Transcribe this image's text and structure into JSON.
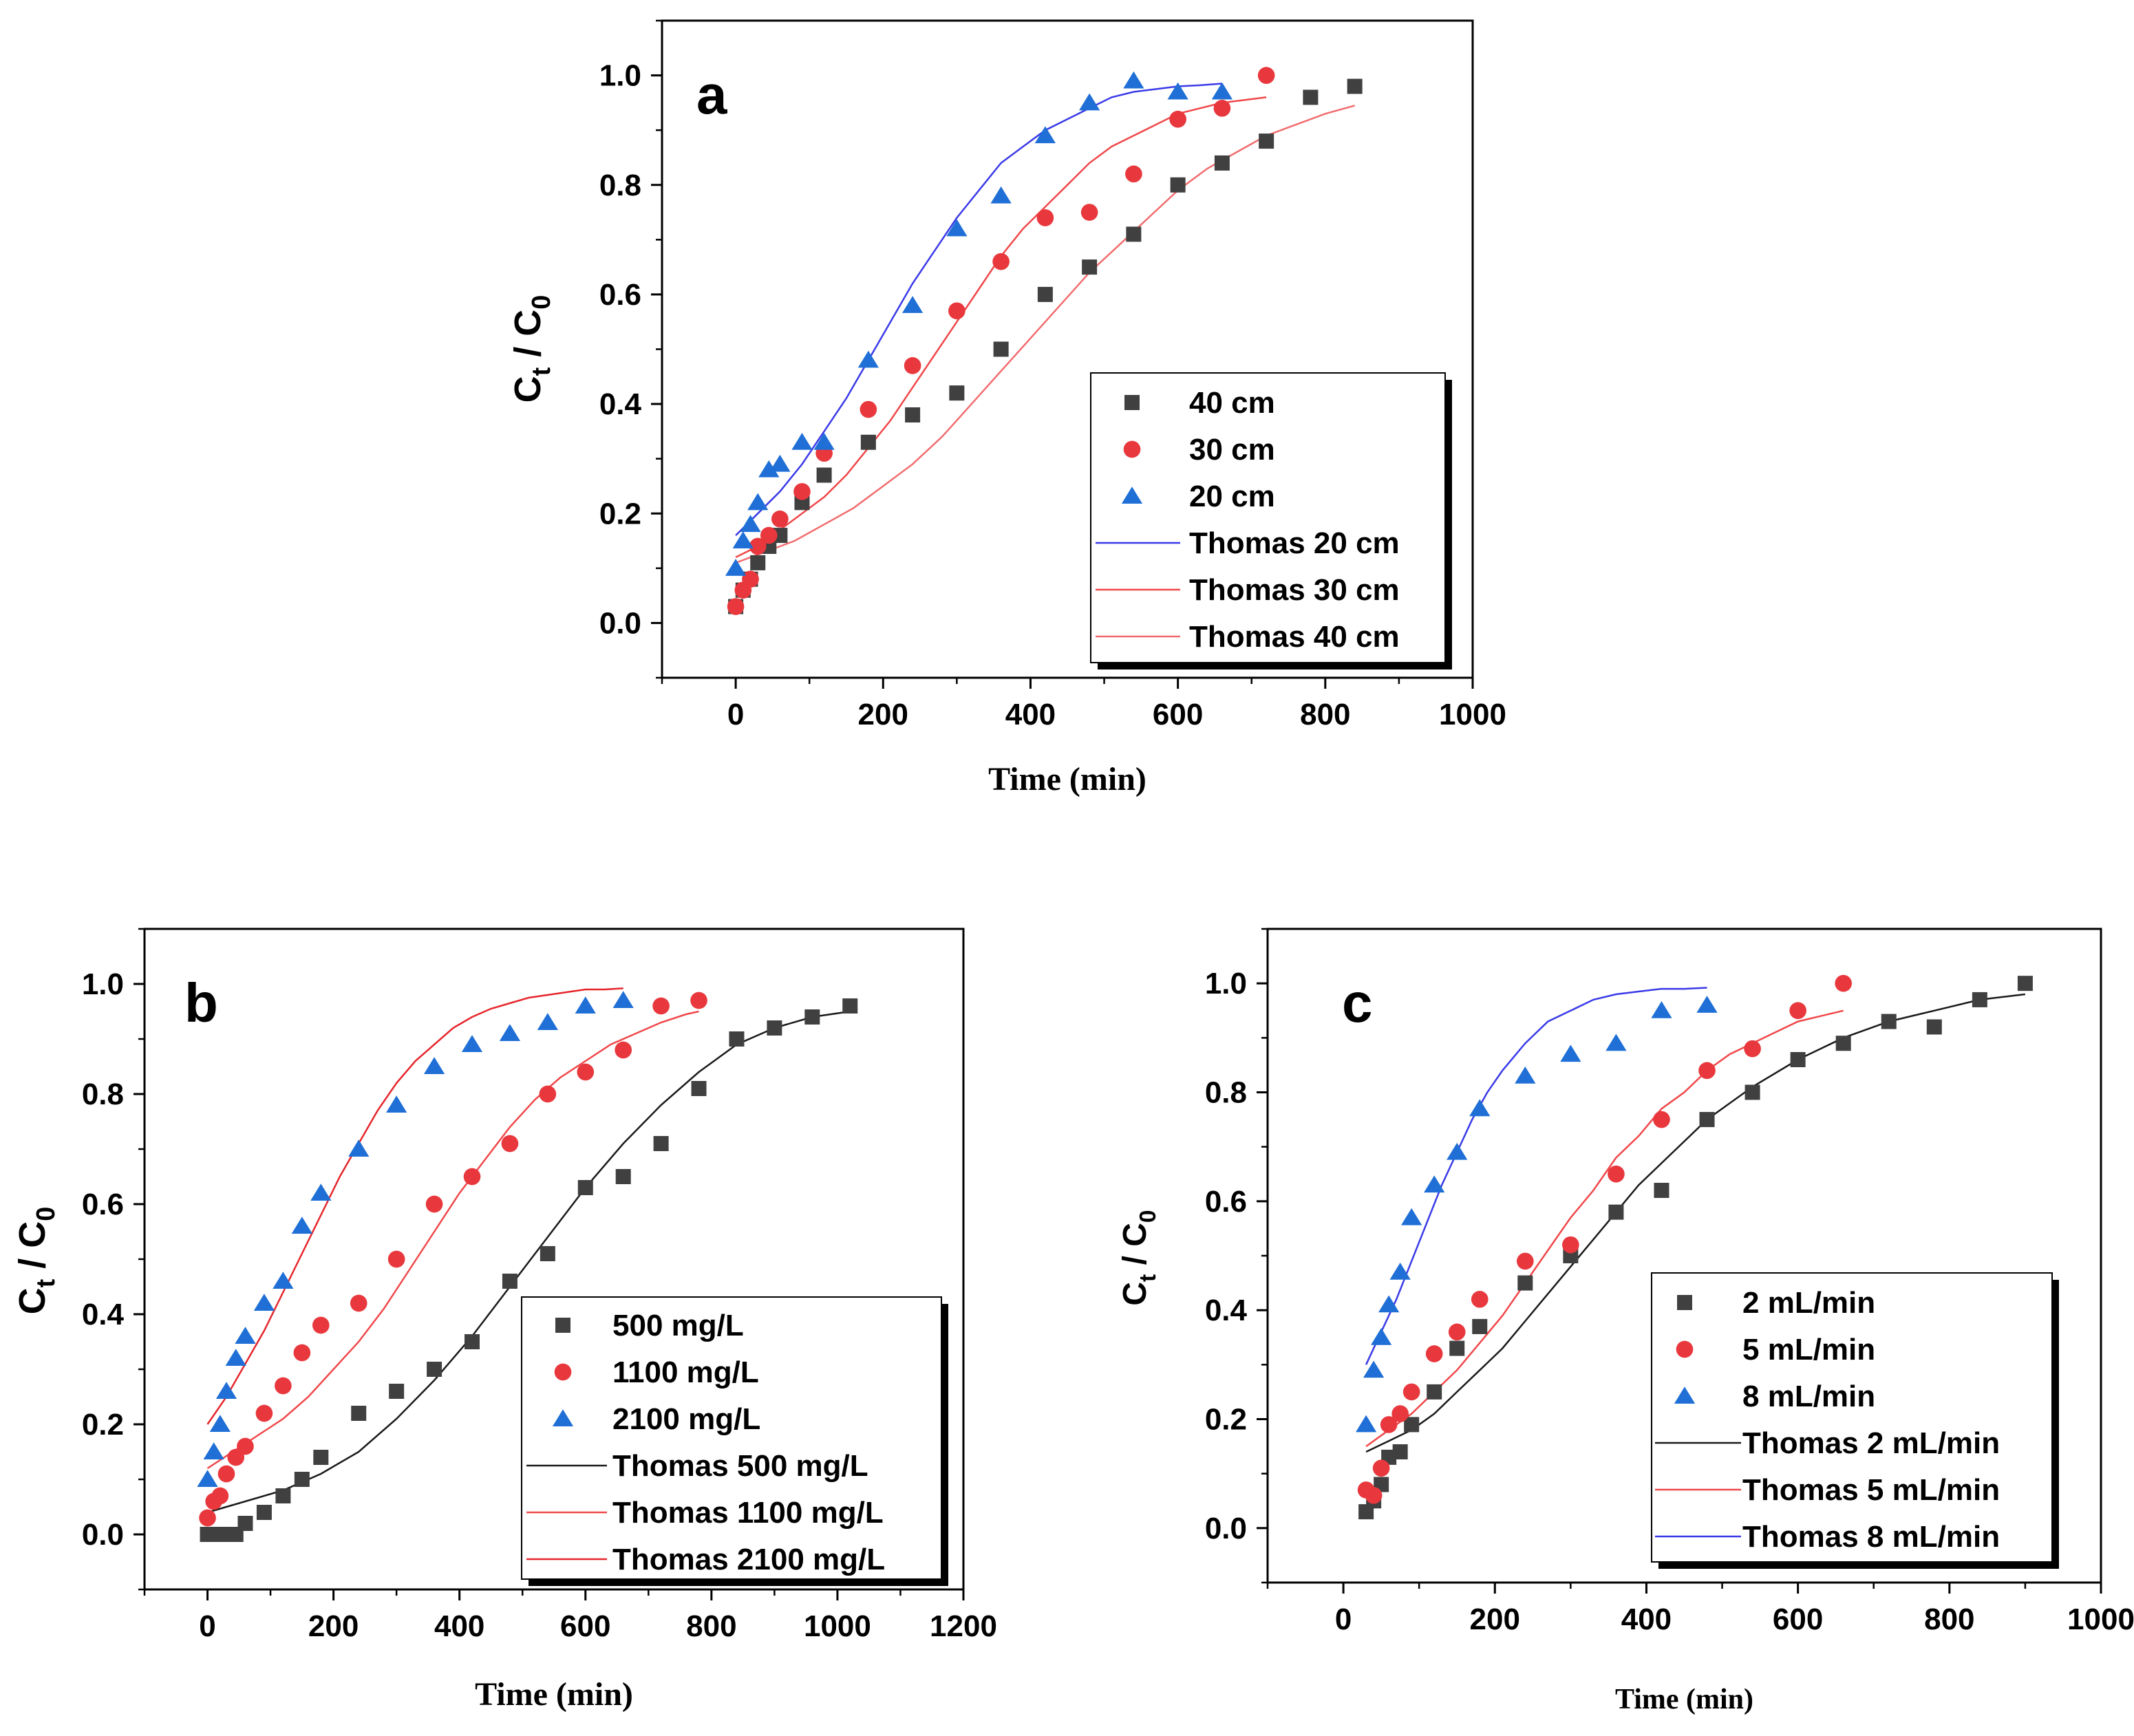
{
  "chart_data": [
    {
      "id": "a",
      "type": "scatter",
      "panel_label": "a",
      "xlabel": "Time (min)",
      "ylabel_main": "C",
      "ylabel_sub1": "t",
      "ylabel_mid": " / C",
      "ylabel_sub2": "0",
      "xlim": [
        -100,
        1000
      ],
      "ylim": [
        -0.1,
        1.1
      ],
      "xticks": [
        0,
        200,
        400,
        600,
        800,
        1000
      ],
      "yticks": [
        0.0,
        0.2,
        0.4,
        0.6,
        0.8,
        1.0
      ],
      "xtick_labels": [
        "0",
        "200",
        "400",
        "600",
        "800",
        "1000"
      ],
      "ytick_labels": [
        "0.0",
        "0.2",
        "0.4",
        "0.6",
        "0.8",
        "1.0"
      ],
      "legend_position": "lower-right",
      "series": [
        {
          "name": "40 cm",
          "kind": "points",
          "marker": "square",
          "color": "#404040",
          "x": [
            0,
            10,
            20,
            30,
            45,
            60,
            90,
            120,
            180,
            240,
            300,
            360,
            420,
            480,
            540,
            600,
            660,
            720,
            780,
            840
          ],
          "y": [
            0.03,
            0.06,
            0.08,
            0.11,
            0.14,
            0.16,
            0.22,
            0.27,
            0.33,
            0.38,
            0.42,
            0.5,
            0.6,
            0.65,
            0.71,
            0.8,
            0.84,
            0.88,
            0.96,
            0.98
          ]
        },
        {
          "name": "30 cm",
          "kind": "points",
          "marker": "circle",
          "color": "#e8383d",
          "x": [
            0,
            10,
            20,
            30,
            45,
            60,
            90,
            120,
            180,
            240,
            300,
            360,
            420,
            480,
            540,
            600,
            660,
            720
          ],
          "y": [
            0.03,
            0.06,
            0.08,
            0.14,
            0.16,
            0.19,
            0.24,
            0.31,
            0.39,
            0.47,
            0.57,
            0.66,
            0.74,
            0.75,
            0.82,
            0.92,
            0.94,
            1.0
          ]
        },
        {
          "name": "20 cm",
          "kind": "points",
          "marker": "triangle",
          "color": "#1f6fd6",
          "x": [
            0,
            10,
            20,
            30,
            45,
            60,
            90,
            120,
            180,
            240,
            300,
            360,
            420,
            480,
            540,
            600,
            660
          ],
          "y": [
            0.1,
            0.15,
            0.18,
            0.22,
            0.28,
            0.29,
            0.33,
            0.33,
            0.48,
            0.58,
            0.72,
            0.78,
            0.89,
            0.95,
            0.99,
            0.97,
            0.97
          ]
        },
        {
          "name": "Thomas 20 cm",
          "kind": "line",
          "color": "#3a3ae8",
          "x": [
            0,
            30,
            60,
            90,
            120,
            150,
            180,
            210,
            240,
            270,
            300,
            330,
            360,
            390,
            420,
            450,
            480,
            510,
            540,
            570,
            600,
            630,
            660
          ],
          "y": [
            0.16,
            0.2,
            0.24,
            0.29,
            0.35,
            0.41,
            0.48,
            0.55,
            0.62,
            0.68,
            0.74,
            0.79,
            0.84,
            0.87,
            0.9,
            0.92,
            0.94,
            0.96,
            0.97,
            0.975,
            0.98,
            0.982,
            0.985
          ]
        },
        {
          "name": "Thomas 30 cm",
          "kind": "line",
          "color": "#f0474a",
          "x": [
            0,
            30,
            60,
            90,
            120,
            150,
            180,
            210,
            240,
            270,
            300,
            330,
            360,
            390,
            420,
            450,
            480,
            510,
            540,
            570,
            600,
            630,
            660,
            690,
            720
          ],
          "y": [
            0.12,
            0.14,
            0.17,
            0.2,
            0.23,
            0.27,
            0.32,
            0.37,
            0.43,
            0.49,
            0.55,
            0.61,
            0.67,
            0.72,
            0.76,
            0.8,
            0.84,
            0.87,
            0.89,
            0.91,
            0.93,
            0.94,
            0.95,
            0.955,
            0.96
          ]
        },
        {
          "name": "Thomas 40 cm",
          "kind": "line",
          "color": "#f26b6e",
          "x": [
            0,
            40,
            80,
            120,
            160,
            200,
            240,
            280,
            320,
            360,
            400,
            440,
            480,
            520,
            560,
            600,
            640,
            680,
            720,
            760,
            800,
            840
          ],
          "y": [
            0.11,
            0.13,
            0.15,
            0.18,
            0.21,
            0.25,
            0.29,
            0.34,
            0.4,
            0.46,
            0.52,
            0.58,
            0.64,
            0.69,
            0.74,
            0.79,
            0.83,
            0.86,
            0.89,
            0.91,
            0.93,
            0.945
          ]
        }
      ]
    },
    {
      "id": "b",
      "type": "scatter",
      "panel_label": "b",
      "xlabel": "Time (min)",
      "ylabel_main": "C",
      "ylabel_sub1": "t",
      "ylabel_mid": " / C",
      "ylabel_sub2": "0",
      "xlim": [
        -100,
        1200
      ],
      "ylim": [
        -0.1,
        1.1
      ],
      "xticks": [
        0,
        200,
        400,
        600,
        800,
        1000,
        1200
      ],
      "yticks": [
        0.0,
        0.2,
        0.4,
        0.6,
        0.8,
        1.0
      ],
      "xtick_labels": [
        "0",
        "200",
        "400",
        "600",
        "800",
        "1000",
        "1200"
      ],
      "ytick_labels": [
        "0.0",
        "0.2",
        "0.4",
        "0.6",
        "0.8",
        "1.0"
      ],
      "legend_position": "lower-right",
      "series": [
        {
          "name": "500 mg/L",
          "kind": "points",
          "marker": "square",
          "color": "#404040",
          "x": [
            0,
            10,
            20,
            30,
            45,
            60,
            90,
            120,
            150,
            180,
            240,
            300,
            360,
            420,
            480,
            540,
            600,
            660,
            720,
            780,
            840,
            900,
            960,
            1020
          ],
          "y": [
            0.0,
            0.0,
            0.0,
            0.0,
            0.0,
            0.02,
            0.04,
            0.07,
            0.1,
            0.14,
            0.22,
            0.26,
            0.3,
            0.35,
            0.46,
            0.51,
            0.63,
            0.65,
            0.71,
            0.81,
            0.9,
            0.92,
            0.94,
            0.96
          ]
        },
        {
          "name": "1100 mg/L",
          "kind": "points",
          "marker": "circle",
          "color": "#e8383d",
          "x": [
            0,
            10,
            20,
            30,
            45,
            60,
            90,
            120,
            150,
            180,
            240,
            300,
            360,
            420,
            480,
            540,
            600,
            660,
            720,
            780
          ],
          "y": [
            0.03,
            0.06,
            0.07,
            0.11,
            0.14,
            0.16,
            0.22,
            0.27,
            0.33,
            0.38,
            0.42,
            0.5,
            0.6,
            0.65,
            0.71,
            0.8,
            0.84,
            0.88,
            0.96,
            0.97
          ]
        },
        {
          "name": "2100 mg/L",
          "kind": "points",
          "marker": "triangle",
          "color": "#1f6fd6",
          "x": [
            0,
            10,
            20,
            30,
            45,
            60,
            90,
            120,
            150,
            180,
            240,
            300,
            360,
            420,
            480,
            540,
            600,
            660
          ],
          "y": [
            0.1,
            0.15,
            0.2,
            0.26,
            0.32,
            0.36,
            0.42,
            0.46,
            0.56,
            0.62,
            0.7,
            0.78,
            0.85,
            0.89,
            0.91,
            0.93,
            0.96,
            0.97
          ]
        },
        {
          "name": "Thomas 500 mg/L",
          "kind": "line",
          "color": "#1a1a1a",
          "x": [
            0,
            60,
            120,
            180,
            240,
            300,
            360,
            420,
            480,
            540,
            600,
            660,
            720,
            780,
            840,
            900,
            960,
            1020
          ],
          "y": [
            0.04,
            0.06,
            0.08,
            0.11,
            0.15,
            0.21,
            0.28,
            0.36,
            0.45,
            0.54,
            0.63,
            0.71,
            0.78,
            0.84,
            0.89,
            0.92,
            0.94,
            0.95
          ]
        },
        {
          "name": "Thomas 1100 mg/L",
          "kind": "line",
          "color": "#f0474a",
          "x": [
            0,
            40,
            80,
            120,
            160,
            200,
            240,
            280,
            320,
            360,
            400,
            440,
            480,
            520,
            560,
            600,
            640,
            680,
            720,
            760,
            780
          ],
          "y": [
            0.12,
            0.15,
            0.18,
            0.21,
            0.25,
            0.3,
            0.35,
            0.41,
            0.48,
            0.55,
            0.62,
            0.68,
            0.74,
            0.79,
            0.83,
            0.86,
            0.89,
            0.91,
            0.93,
            0.945,
            0.95
          ]
        },
        {
          "name": "Thomas 2100 mg/L",
          "kind": "line",
          "color": "#e6262c",
          "x": [
            0,
            30,
            60,
            90,
            120,
            150,
            180,
            210,
            240,
            270,
            300,
            330,
            360,
            390,
            420,
            450,
            480,
            510,
            540,
            570,
            600,
            630,
            660
          ],
          "y": [
            0.2,
            0.25,
            0.31,
            0.37,
            0.44,
            0.51,
            0.58,
            0.65,
            0.71,
            0.77,
            0.82,
            0.86,
            0.89,
            0.92,
            0.94,
            0.955,
            0.965,
            0.975,
            0.98,
            0.985,
            0.99,
            0.99,
            0.992
          ]
        }
      ]
    },
    {
      "id": "c",
      "type": "scatter",
      "panel_label": "c",
      "xlabel": "Time (min)",
      "ylabel_main": "C",
      "ylabel_sub1": "t",
      "ylabel_mid": " / C",
      "ylabel_sub2": "0",
      "xlim": [
        -100,
        1000
      ],
      "ylim": [
        -0.1,
        1.1
      ],
      "xticks": [
        0,
        200,
        400,
        600,
        800,
        1000
      ],
      "yticks": [
        0.0,
        0.2,
        0.4,
        0.6,
        0.8,
        1.0
      ],
      "xtick_labels": [
        "0",
        "200",
        "400",
        "600",
        "800",
        "1000"
      ],
      "ytick_labels": [
        "0.0",
        "0.2",
        "0.4",
        "0.6",
        "0.8",
        "1.0"
      ],
      "legend_position": "lower-right",
      "series": [
        {
          "name": "2 mL/min",
          "kind": "points",
          "marker": "square",
          "color": "#404040",
          "x": [
            30,
            40,
            50,
            60,
            75,
            90,
            120,
            150,
            180,
            240,
            300,
            360,
            420,
            480,
            540,
            600,
            660,
            720,
            780,
            840,
            900
          ],
          "y": [
            0.03,
            0.05,
            0.08,
            0.13,
            0.14,
            0.19,
            0.25,
            0.33,
            0.37,
            0.45,
            0.5,
            0.58,
            0.62,
            0.75,
            0.8,
            0.86,
            0.89,
            0.93,
            0.92,
            0.97,
            1.0
          ]
        },
        {
          "name": "5 mL/min",
          "kind": "points",
          "marker": "circle",
          "color": "#e8383d",
          "x": [
            30,
            40,
            50,
            60,
            75,
            90,
            120,
            150,
            180,
            240,
            300,
            360,
            420,
            480,
            540,
            600,
            660
          ],
          "y": [
            0.07,
            0.06,
            0.11,
            0.19,
            0.21,
            0.25,
            0.32,
            0.36,
            0.42,
            0.49,
            0.52,
            0.65,
            0.75,
            0.84,
            0.88,
            0.95,
            1.0
          ]
        },
        {
          "name": "8 mL/min",
          "kind": "points",
          "marker": "triangle",
          "color": "#1f6fd6",
          "x": [
            30,
            40,
            50,
            60,
            75,
            90,
            120,
            150,
            180,
            240,
            300,
            360,
            420,
            480
          ],
          "y": [
            0.19,
            0.29,
            0.35,
            0.41,
            0.47,
            0.57,
            0.63,
            0.69,
            0.77,
            0.83,
            0.87,
            0.89,
            0.95,
            0.96
          ]
        },
        {
          "name": "Thomas 2 mL/min",
          "kind": "line",
          "color": "#1a1a1a",
          "x": [
            30,
            60,
            90,
            120,
            150,
            180,
            210,
            240,
            270,
            300,
            330,
            360,
            390,
            420,
            480,
            540,
            600,
            660,
            720,
            780,
            840,
            900
          ],
          "y": [
            0.14,
            0.16,
            0.18,
            0.21,
            0.25,
            0.29,
            0.33,
            0.38,
            0.43,
            0.48,
            0.53,
            0.58,
            0.63,
            0.67,
            0.75,
            0.81,
            0.86,
            0.9,
            0.93,
            0.95,
            0.97,
            0.98
          ]
        },
        {
          "name": "Thomas 5 mL/min",
          "kind": "line",
          "color": "#f0474a",
          "x": [
            30,
            60,
            90,
            120,
            150,
            180,
            210,
            240,
            270,
            300,
            330,
            360,
            390,
            420,
            450,
            480,
            510,
            540,
            570,
            600,
            630,
            660
          ],
          "y": [
            0.15,
            0.18,
            0.21,
            0.25,
            0.29,
            0.34,
            0.39,
            0.45,
            0.51,
            0.57,
            0.62,
            0.68,
            0.72,
            0.77,
            0.8,
            0.84,
            0.87,
            0.89,
            0.91,
            0.93,
            0.94,
            0.95
          ]
        },
        {
          "name": "Thomas 8 mL/min",
          "kind": "line",
          "color": "#3a3ae8",
          "x": [
            30,
            50,
            70,
            90,
            110,
            130,
            150,
            170,
            190,
            210,
            240,
            270,
            300,
            330,
            360,
            390,
            420,
            450,
            480
          ],
          "y": [
            0.3,
            0.36,
            0.42,
            0.49,
            0.56,
            0.63,
            0.69,
            0.75,
            0.8,
            0.84,
            0.89,
            0.93,
            0.95,
            0.97,
            0.98,
            0.985,
            0.99,
            0.99,
            0.992
          ]
        }
      ]
    }
  ]
}
